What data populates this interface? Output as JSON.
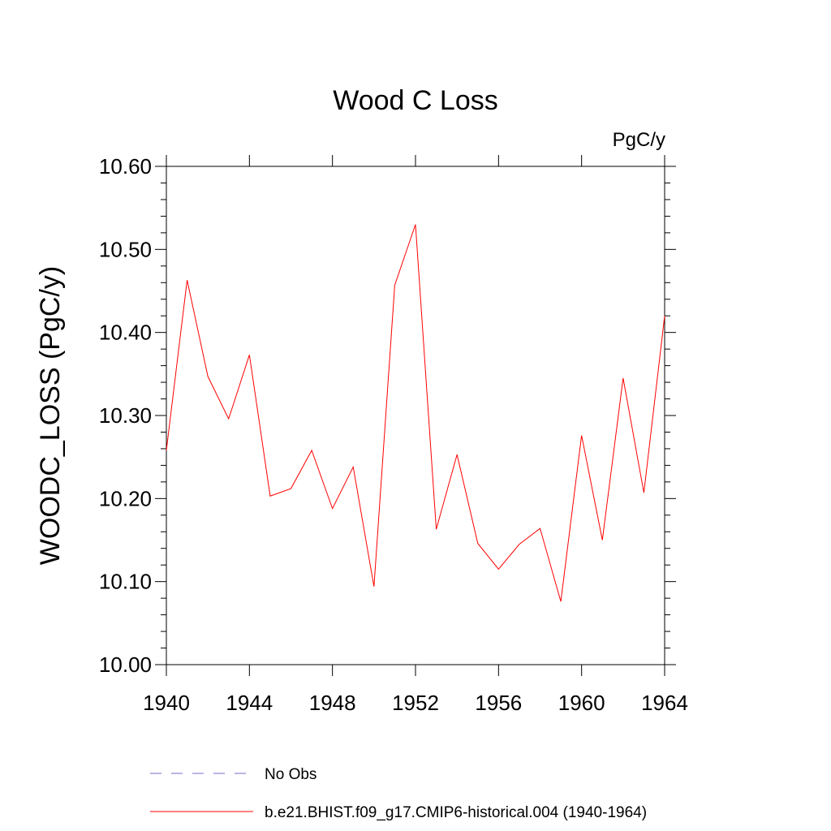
{
  "chart_data": {
    "type": "line",
    "title": "Wood C Loss",
    "units_label": "PgC/y",
    "ylabel": "WOODC_LOSS  (PgC/y)",
    "xlabel": "",
    "xlim": [
      1940,
      1964
    ],
    "ylim": [
      10.0,
      10.6
    ],
    "x_ticks": [
      1940,
      1944,
      1948,
      1952,
      1956,
      1960,
      1964
    ],
    "x_tick_labels": [
      "1940",
      "1944",
      "1948",
      "1952",
      "1956",
      "1960",
      "1964"
    ],
    "y_ticks": [
      10.0,
      10.1,
      10.2,
      10.3,
      10.4,
      10.5,
      10.6
    ],
    "y_tick_labels": [
      "10.00",
      "10.10",
      "10.20",
      "10.30",
      "10.40",
      "10.50",
      "10.60"
    ],
    "grid": false,
    "legend_position": "bottom",
    "series": [
      {
        "name": "b.e21.BHIST.f09_g17.CMIP6-historical.004 (1940-1964)",
        "color": "#ff0000",
        "x": [
          1940,
          1941,
          1942,
          1943,
          1944,
          1945,
          1946,
          1947,
          1948,
          1949,
          1950,
          1951,
          1952,
          1953,
          1954,
          1955,
          1956,
          1957,
          1958,
          1959,
          1960,
          1961,
          1962,
          1963,
          1964
        ],
        "y": [
          10.258,
          10.463,
          10.347,
          10.296,
          10.373,
          10.203,
          10.212,
          10.258,
          10.188,
          10.238,
          10.094,
          10.457,
          10.53,
          10.163,
          10.253,
          10.146,
          10.115,
          10.145,
          10.164,
          10.076,
          10.276,
          10.15,
          10.345,
          10.207,
          10.42
        ]
      }
    ],
    "legend": [
      {
        "label": "No Obs",
        "color": "#7b68c8",
        "style": "dashed"
      },
      {
        "label": "b.e21.BHIST.f09_g17.CMIP6-historical.004 (1940-1964)",
        "color": "#ff0000",
        "style": "solid"
      }
    ]
  }
}
